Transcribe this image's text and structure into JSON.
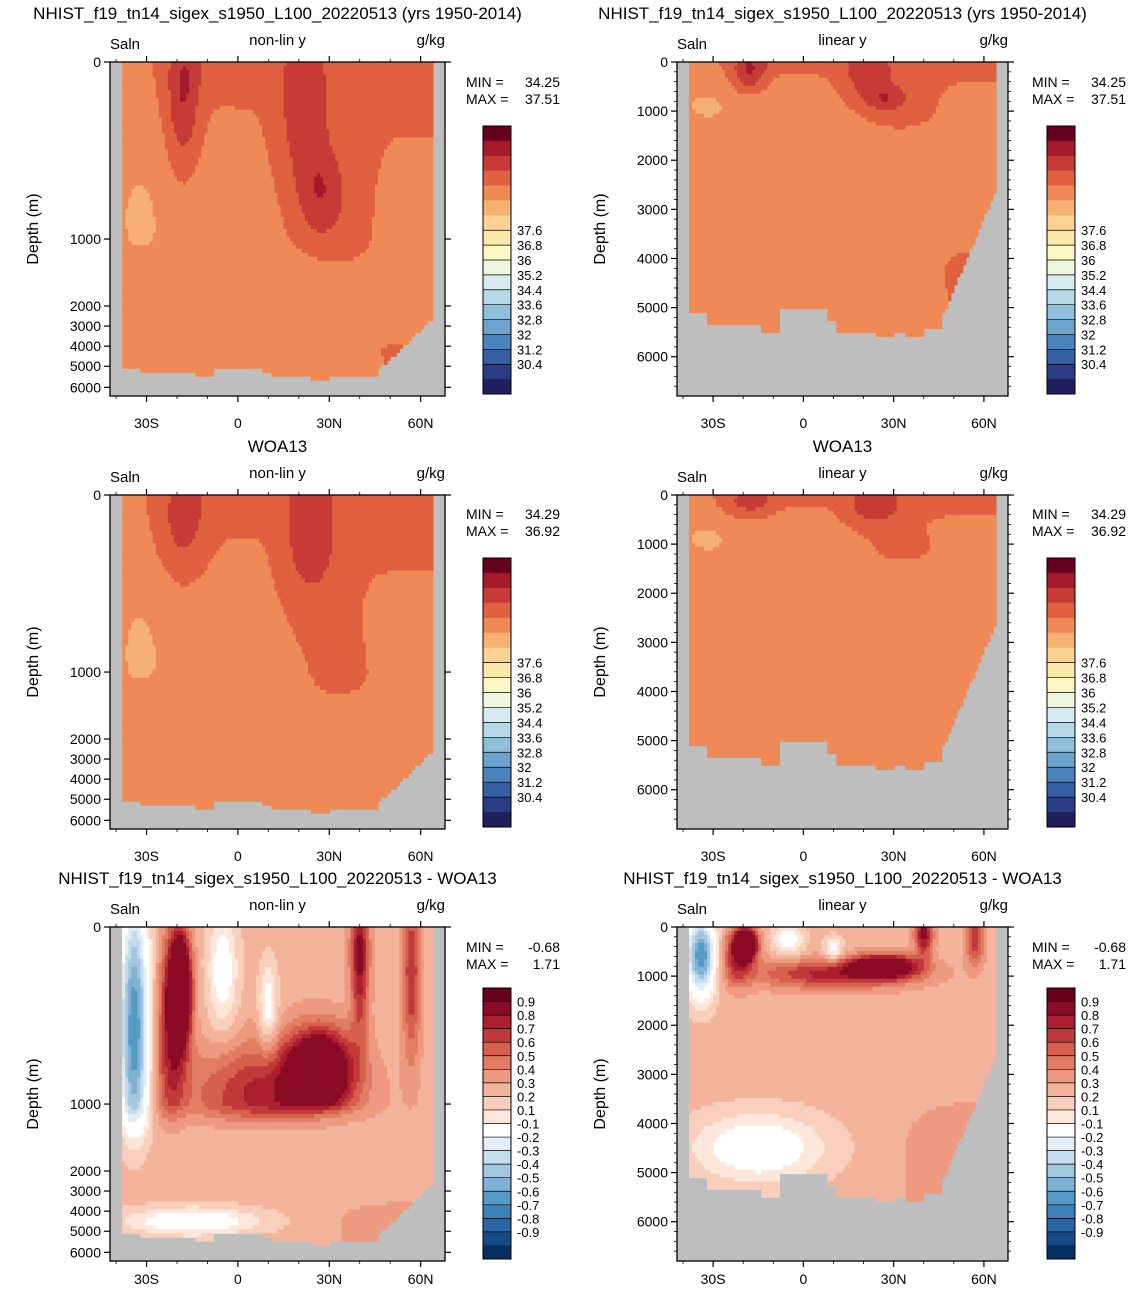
{
  "panels": [
    {
      "title": "NHIST_f19_tn14_sigex_s1950_L100_20220513 (yrs 1950-2014)",
      "left_label": "Saln",
      "center_label": "non-lin y",
      "right_label": "g/kg",
      "ylabel": "Depth (m)",
      "min_label": "MIN =",
      "min_value": "34.25",
      "max_label": "MAX =",
      "max_value": "37.51",
      "kind": "saln",
      "scale": "nonlin",
      "variant": "model"
    },
    {
      "title": "NHIST_f19_tn14_sigex_s1950_L100_20220513 (yrs 1950-2014)",
      "left_label": "Saln",
      "center_label": "linear y",
      "right_label": "g/kg",
      "ylabel": "Depth (m)",
      "min_label": "MIN =",
      "min_value": "34.25",
      "max_label": "MAX =",
      "max_value": "37.51",
      "kind": "saln",
      "scale": "linear",
      "variant": "model"
    },
    {
      "title": "WOA13",
      "left_label": "Saln",
      "center_label": "non-lin y",
      "right_label": "g/kg",
      "ylabel": "Depth (m)",
      "min_label": "MIN =",
      "min_value": "34.29",
      "max_label": "MAX =",
      "max_value": "36.92",
      "kind": "saln",
      "scale": "nonlin",
      "variant": "obs"
    },
    {
      "title": "WOA13",
      "left_label": "Saln",
      "center_label": "linear y",
      "right_label": "g/kg",
      "ylabel": "Depth (m)",
      "min_label": "MIN =",
      "min_value": "34.29",
      "max_label": "MAX =",
      "max_value": "36.92",
      "kind": "saln",
      "scale": "linear",
      "variant": "obs"
    },
    {
      "title": "NHIST_f19_tn14_sigex_s1950_L100_20220513 - WOA13",
      "left_label": "Saln",
      "center_label": "non-lin y",
      "right_label": "g/kg",
      "ylabel": "Depth (m)",
      "min_label": "MIN =",
      "min_value": "-0.68",
      "max_label": "MAX =",
      "max_value": "1.71",
      "kind": "diff",
      "scale": "nonlin",
      "variant": "diff"
    },
    {
      "title": "NHIST_f19_tn14_sigex_s1950_L100_20220513 - WOA13",
      "left_label": "Saln",
      "center_label": "linear y",
      "right_label": "g/kg",
      "ylabel": "Depth (m)",
      "min_label": "MIN =",
      "min_value": "-0.68",
      "max_label": "MAX =",
      "max_value": "1.71",
      "kind": "diff",
      "scale": "linear",
      "variant": "diff"
    }
  ],
  "x_ticks": [
    {
      "value": -30,
      "label": "30S"
    },
    {
      "value": 0,
      "label": "0"
    },
    {
      "value": 30,
      "label": "30N"
    },
    {
      "value": 60,
      "label": "60N"
    }
  ],
  "y_ticks_nonlin": [
    "0",
    "1000",
    "2000",
    "3000",
    "4000",
    "5000",
    "6000"
  ],
  "y_ticks_linear": [
    "0",
    "1000",
    "2000",
    "3000",
    "4000",
    "5000",
    "6000"
  ],
  "colorbars": {
    "saln": {
      "labels": [
        "37.6",
        "36.8",
        "36",
        "35.2",
        "34.4",
        "33.6",
        "32.8",
        "32",
        "31.2",
        "30.4"
      ],
      "colors": [
        "#67001f",
        "#a51a2a",
        "#c83a35",
        "#e0603f",
        "#ef8a56",
        "#f6b072",
        "#fbd28f",
        "#fde9a7",
        "#fdf7c5",
        "#eef6dd",
        "#d6ebf0",
        "#b5d9e8",
        "#8ec0dc",
        "#6aa4cc",
        "#4b83bc",
        "#3560a6",
        "#2a3d84",
        "#20205c"
      ]
    },
    "diff": {
      "labels": [
        "0.9",
        "0.8",
        "0.7",
        "0.6",
        "0.5",
        "0.4",
        "0.3",
        "0.2",
        "0.1",
        "-0.1",
        "-0.2",
        "-0.3",
        "-0.4",
        "-0.5",
        "-0.6",
        "-0.7",
        "-0.8",
        "-0.9"
      ],
      "colors": [
        "#67001f",
        "#8a0b25",
        "#ad1f2e",
        "#c2393a",
        "#d6604d",
        "#e27d63",
        "#ee9a80",
        "#f4b49c",
        "#f9cfbc",
        "#fde6da",
        "#ffffff",
        "#e1ecf4",
        "#c4dcec",
        "#a2c8e1",
        "#7fb1d3",
        "#569ac6",
        "#3a82b8",
        "#2766a0",
        "#164c86",
        "#053061"
      ]
    }
  },
  "chart_data": [
    {
      "type": "heatmap",
      "title": "NHIST_f19_tn14_sigex_s1950_L100_20220513 (yrs 1950-2014)",
      "variable": "Saln",
      "units": "g/kg",
      "y_axis": "non-lin y",
      "ylabel": "Depth (m)",
      "xlim": [
        -42,
        68
      ],
      "ylim": [
        6500,
        0
      ],
      "x_ticks": [
        "30S",
        "0",
        "30N",
        "60N"
      ],
      "min": 34.25,
      "max": 37.51,
      "levels": [
        30.4,
        31.2,
        32,
        32.8,
        33.6,
        34.4,
        35.2,
        36,
        36.8,
        37.6
      ]
    },
    {
      "type": "heatmap",
      "title": "NHIST_f19_tn14_sigex_s1950_L100_20220513 (yrs 1950-2014)",
      "variable": "Saln",
      "units": "g/kg",
      "y_axis": "linear y",
      "ylabel": "Depth (m)",
      "xlim": [
        -42,
        68
      ],
      "ylim": [
        6800,
        0
      ],
      "x_ticks": [
        "30S",
        "0",
        "30N",
        "60N"
      ],
      "min": 34.25,
      "max": 37.51,
      "levels": [
        30.4,
        31.2,
        32,
        32.8,
        33.6,
        34.4,
        35.2,
        36,
        36.8,
        37.6
      ]
    },
    {
      "type": "heatmap",
      "title": "WOA13",
      "variable": "Saln",
      "units": "g/kg",
      "y_axis": "non-lin y",
      "ylabel": "Depth (m)",
      "xlim": [
        -42,
        68
      ],
      "ylim": [
        6500,
        0
      ],
      "x_ticks": [
        "30S",
        "0",
        "30N",
        "60N"
      ],
      "min": 34.29,
      "max": 36.92,
      "levels": [
        30.4,
        31.2,
        32,
        32.8,
        33.6,
        34.4,
        35.2,
        36,
        36.8,
        37.6
      ]
    },
    {
      "type": "heatmap",
      "title": "WOA13",
      "variable": "Saln",
      "units": "g/kg",
      "y_axis": "linear y",
      "ylabel": "Depth (m)",
      "xlim": [
        -42,
        68
      ],
      "ylim": [
        6800,
        0
      ],
      "x_ticks": [
        "30S",
        "0",
        "30N",
        "60N"
      ],
      "min": 34.29,
      "max": 36.92,
      "levels": [
        30.4,
        31.2,
        32,
        32.8,
        33.6,
        34.4,
        35.2,
        36,
        36.8,
        37.6
      ]
    },
    {
      "type": "heatmap",
      "title": "NHIST_f19_tn14_sigex_s1950_L100_20220513 - WOA13",
      "variable": "Saln",
      "units": "g/kg",
      "y_axis": "non-lin y",
      "ylabel": "Depth (m)",
      "xlim": [
        -42,
        68
      ],
      "ylim": [
        6500,
        0
      ],
      "x_ticks": [
        "30S",
        "0",
        "30N",
        "60N"
      ],
      "min": -0.68,
      "max": 1.71,
      "levels": [
        -0.9,
        -0.8,
        -0.7,
        -0.6,
        -0.5,
        -0.4,
        -0.3,
        -0.2,
        -0.1,
        0.1,
        0.2,
        0.3,
        0.4,
        0.5,
        0.6,
        0.7,
        0.8,
        0.9
      ]
    },
    {
      "type": "heatmap",
      "title": "NHIST_f19_tn14_sigex_s1950_L100_20220513 - WOA13",
      "variable": "Saln",
      "units": "g/kg",
      "y_axis": "linear y",
      "ylabel": "Depth (m)",
      "xlim": [
        -42,
        68
      ],
      "ylim": [
        6800,
        0
      ],
      "x_ticks": [
        "30S",
        "0",
        "30N",
        "60N"
      ],
      "min": -0.68,
      "max": 1.71,
      "levels": [
        -0.9,
        -0.8,
        -0.7,
        -0.6,
        -0.5,
        -0.4,
        -0.3,
        -0.2,
        -0.1,
        0.1,
        0.2,
        0.3,
        0.4,
        0.5,
        0.6,
        0.7,
        0.8,
        0.9
      ]
    }
  ]
}
